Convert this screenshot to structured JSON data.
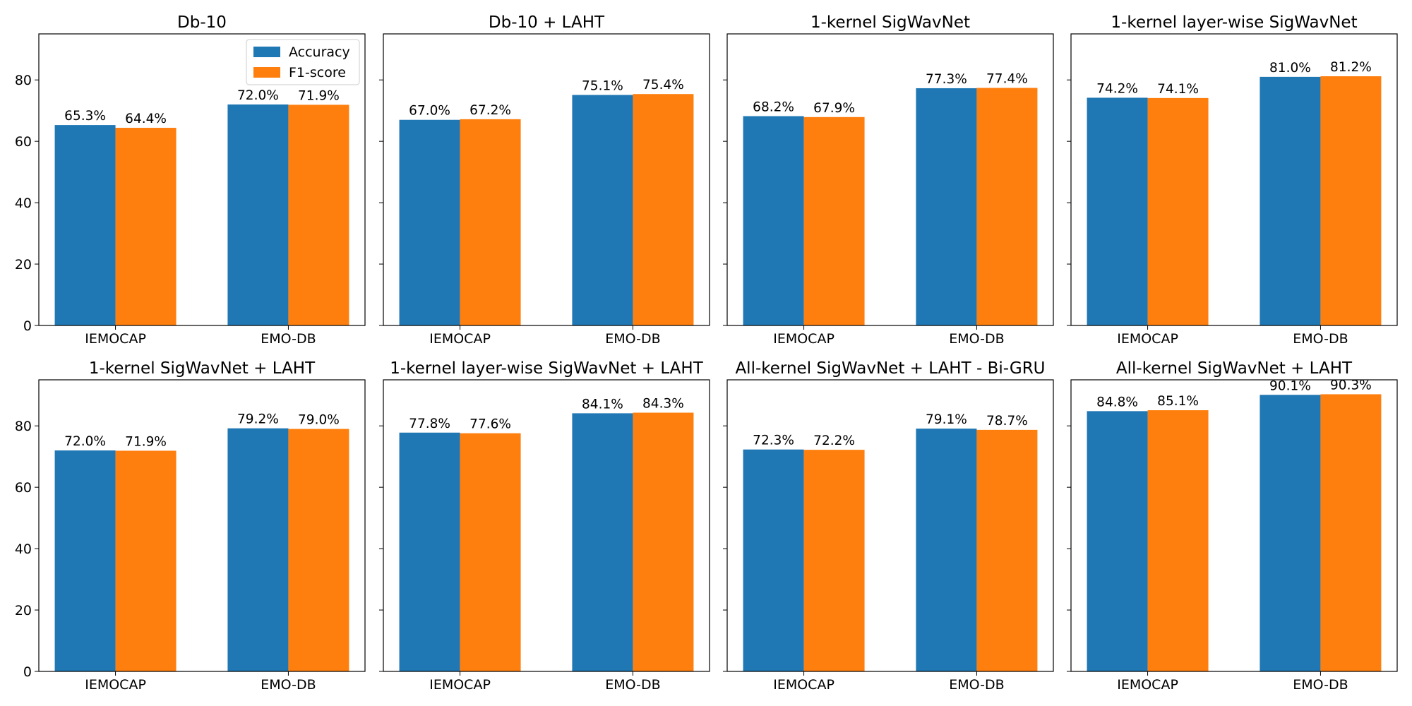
{
  "colors": {
    "accuracy": "#1f77b4",
    "f1": "#ff7f0e"
  },
  "chart_data": [
    {
      "type": "bar",
      "title": "Db-10",
      "categories": [
        "IEMOCAP",
        "EMO-DB"
      ],
      "series": [
        {
          "name": "Accuracy",
          "values": [
            65.3,
            72.0
          ]
        },
        {
          "name": "F1-score",
          "values": [
            64.4,
            71.9
          ]
        }
      ],
      "data_labels": [
        [
          "65.3%",
          "64.4%"
        ],
        [
          "72.0%",
          "71.9%"
        ]
      ],
      "ylim": [
        0,
        95
      ],
      "yticks": [
        "0",
        "20",
        "40",
        "60",
        "80"
      ],
      "legend": "top-right",
      "grid": false
    },
    {
      "type": "bar",
      "title": "Db-10 + LAHT",
      "categories": [
        "IEMOCAP",
        "EMO-DB"
      ],
      "series": [
        {
          "name": "Accuracy",
          "values": [
            67.0,
            75.1
          ]
        },
        {
          "name": "F1-score",
          "values": [
            67.2,
            75.4
          ]
        }
      ],
      "data_labels": [
        [
          "67.0%",
          "67.2%"
        ],
        [
          "75.1%",
          "75.4%"
        ]
      ],
      "ylim": [
        0,
        95
      ],
      "grid": false
    },
    {
      "type": "bar",
      "title": "1-kernel SigWavNet",
      "categories": [
        "IEMOCAP",
        "EMO-DB"
      ],
      "series": [
        {
          "name": "Accuracy",
          "values": [
            68.2,
            77.3
          ]
        },
        {
          "name": "F1-score",
          "values": [
            67.9,
            77.4
          ]
        }
      ],
      "data_labels": [
        [
          "68.2%",
          "67.9%"
        ],
        [
          "77.3%",
          "77.4%"
        ]
      ],
      "ylim": [
        0,
        95
      ],
      "grid": false
    },
    {
      "type": "bar",
      "title": "1-kernel layer-wise SigWavNet",
      "categories": [
        "IEMOCAP",
        "EMO-DB"
      ],
      "series": [
        {
          "name": "Accuracy",
          "values": [
            74.2,
            81.0
          ]
        },
        {
          "name": "F1-score",
          "values": [
            74.1,
            81.2
          ]
        }
      ],
      "data_labels": [
        [
          "74.2%",
          "74.1%"
        ],
        [
          "81.0%",
          "81.2%"
        ]
      ],
      "ylim": [
        0,
        95
      ],
      "grid": false
    },
    {
      "type": "bar",
      "title": "1-kernel SigWavNet + LAHT",
      "categories": [
        "IEMOCAP",
        "EMO-DB"
      ],
      "series": [
        {
          "name": "Accuracy",
          "values": [
            72.0,
            79.2
          ]
        },
        {
          "name": "F1-score",
          "values": [
            71.9,
            79.0
          ]
        }
      ],
      "data_labels": [
        [
          "72.0%",
          "71.9%"
        ],
        [
          "79.2%",
          "79.0%"
        ]
      ],
      "ylim": [
        0,
        95
      ],
      "yticks": [
        "0",
        "20",
        "40",
        "60",
        "80"
      ],
      "grid": false
    },
    {
      "type": "bar",
      "title": "1-kernel layer-wise SigWavNet + LAHT",
      "categories": [
        "IEMOCAP",
        "EMO-DB"
      ],
      "series": [
        {
          "name": "Accuracy",
          "values": [
            77.8,
            84.1
          ]
        },
        {
          "name": "F1-score",
          "values": [
            77.6,
            84.3
          ]
        }
      ],
      "data_labels": [
        [
          "77.8%",
          "77.6%"
        ],
        [
          "84.1%",
          "84.3%"
        ]
      ],
      "ylim": [
        0,
        95
      ],
      "grid": false
    },
    {
      "type": "bar",
      "title": "All-kernel SigWavNet + LAHT - Bi-GRU",
      "categories": [
        "IEMOCAP",
        "EMO-DB"
      ],
      "series": [
        {
          "name": "Accuracy",
          "values": [
            72.3,
            79.1
          ]
        },
        {
          "name": "F1-score",
          "values": [
            72.2,
            78.7
          ]
        }
      ],
      "data_labels": [
        [
          "72.3%",
          "72.2%"
        ],
        [
          "79.1%",
          "78.7%"
        ]
      ],
      "ylim": [
        0,
        95
      ],
      "grid": false
    },
    {
      "type": "bar",
      "title": "All-kernel SigWavNet + LAHT",
      "categories": [
        "IEMOCAP",
        "EMO-DB"
      ],
      "series": [
        {
          "name": "Accuracy",
          "values": [
            84.8,
            90.1
          ]
        },
        {
          "name": "F1-score",
          "values": [
            85.1,
            90.3
          ]
        }
      ],
      "data_labels": [
        [
          "84.8%",
          "85.1%"
        ],
        [
          "90.1%",
          "90.3%"
        ]
      ],
      "ylim": [
        0,
        95
      ],
      "grid": false
    }
  ]
}
